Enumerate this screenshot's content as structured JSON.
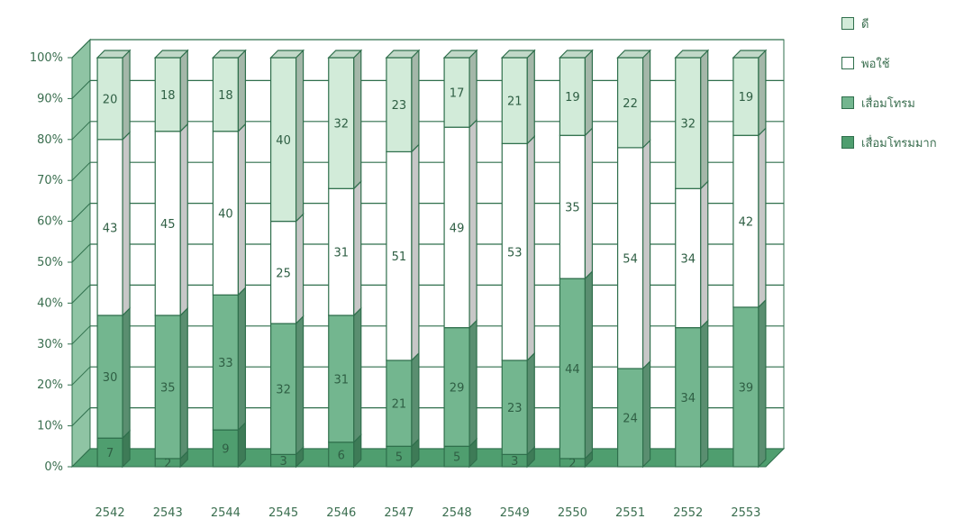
{
  "chart_data": {
    "type": "bar",
    "stacked": true,
    "percent": true,
    "three_d": true,
    "categories": [
      "2542",
      "2543",
      "2544",
      "2545",
      "2546",
      "2547",
      "2548",
      "2549",
      "2550",
      "2551",
      "2552",
      "2553"
    ],
    "series": [
      {
        "name": "เสื่อมโทรมมาก",
        "color": "#4f9e6f",
        "values": [
          7,
          2,
          9,
          3,
          6,
          5,
          5,
          3,
          2,
          0,
          0,
          0
        ]
      },
      {
        "name": "เสื่อมโทรม",
        "color": "#73b68f",
        "values": [
          30,
          35,
          33,
          32,
          31,
          21,
          29,
          23,
          44,
          24,
          34,
          39
        ]
      },
      {
        "name": "พอใช้",
        "color": "#ffffff",
        "values": [
          43,
          45,
          40,
          25,
          31,
          51,
          49,
          53,
          35,
          54,
          34,
          42
        ]
      },
      {
        "name": "ดี",
        "color": "#d2ebd9",
        "values": [
          20,
          18,
          18,
          40,
          32,
          23,
          17,
          21,
          19,
          22,
          32,
          19
        ]
      }
    ],
    "y_ticks": [
      "0%",
      "10%",
      "20%",
      "30%",
      "40%",
      "50%",
      "60%",
      "70%",
      "80%",
      "90%",
      "100%"
    ],
    "ylim": [
      0,
      100
    ],
    "grid": true,
    "legend_position": "right"
  }
}
